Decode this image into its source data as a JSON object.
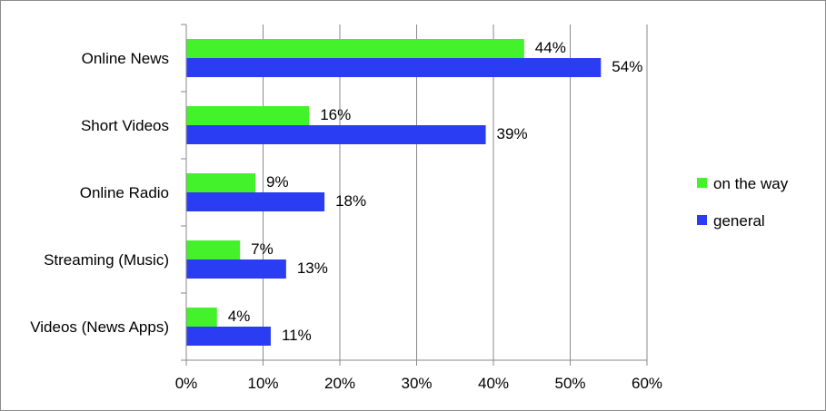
{
  "chart_data": {
    "type": "bar",
    "orientation": "horizontal",
    "categories": [
      "Online News",
      "Short Videos",
      "Online Radio",
      "Streaming (Music)",
      "Videos (News Apps)"
    ],
    "series": [
      {
        "name": "on the way",
        "color": "#44f22c",
        "values": [
          44,
          16,
          9,
          7,
          4
        ],
        "labels": [
          "44%",
          "16%",
          "9%",
          "7%",
          "4%"
        ]
      },
      {
        "name": "general",
        "color": "#2b3df2",
        "values": [
          54,
          39,
          18,
          13,
          11
        ],
        "labels": [
          "54%",
          "39%",
          "18%",
          "13%",
          "11%"
        ]
      }
    ],
    "x_ticks": [
      "0%",
      "10%",
      "20%",
      "30%",
      "40%",
      "50%",
      "60%"
    ],
    "xlim": [
      0,
      60
    ],
    "grid": true,
    "legend_position": "right"
  }
}
